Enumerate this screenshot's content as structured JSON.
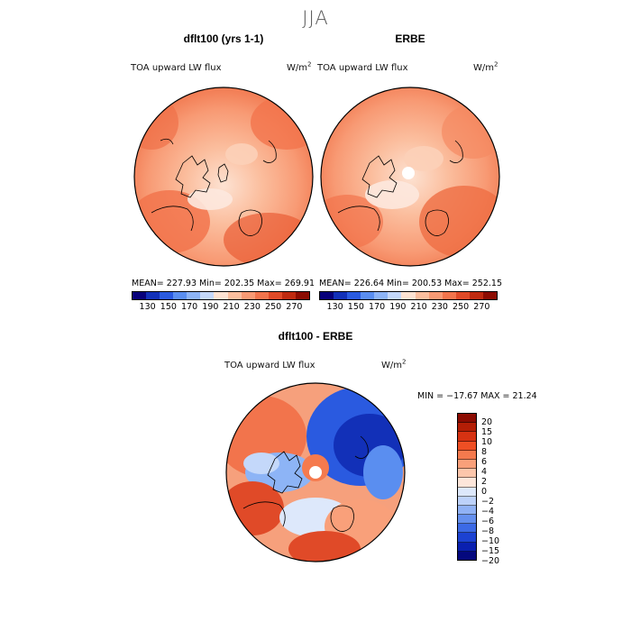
{
  "season_title": "JJA",
  "panels": [
    {
      "title": "dflt100 (yrs 1-1)",
      "field_label": "TOA upward LW flux",
      "units": "W/m",
      "units_exp": "2",
      "stats": "MEAN= 227.93  Min= 202.35   Max= 269.91"
    },
    {
      "title": "ERBE",
      "field_label": "TOA upward LW flux",
      "units": "W/m",
      "units_exp": "2",
      "stats": "MEAN= 226.64  Min= 200.53   Max= 252.15"
    }
  ],
  "colorbar_abs": {
    "colors": [
      "#08007a",
      "#1230b8",
      "#2a5ae0",
      "#5a8ef0",
      "#8db4f6",
      "#c4d8fa",
      "#fde2d2",
      "#fbbe9e",
      "#f89a74",
      "#f2744c",
      "#e04a28",
      "#bf2a10",
      "#8c0c02"
    ],
    "tick_labels": [
      "130",
      "150",
      "170",
      "190",
      "210",
      "230",
      "250",
      "270"
    ]
  },
  "diff_panel": {
    "title": "dflt100 - ERBE",
    "field_label": "TOA upward LW flux",
    "units": "W/m",
    "units_exp": "2",
    "stats": "MIN = −17.67 MAX =  21.24"
  },
  "colorbar_diff": {
    "colors": [
      "#8c0c02",
      "#b41e06",
      "#d63212",
      "#ef4f24",
      "#f57a4e",
      "#f9a07a",
      "#fcc6ab",
      "#fde6da",
      "#dde8fb",
      "#bdd2fa",
      "#90b2f5",
      "#6590ee",
      "#3c6ae6",
      "#1c42d2",
      "#0a20b0",
      "#04087e"
    ],
    "tick_labels": [
      "20",
      "15",
      "10",
      "8",
      "6",
      "4",
      "2",
      "0",
      "−2",
      "−4",
      "−6",
      "−8",
      "−10",
      "−15",
      "−20"
    ]
  }
}
